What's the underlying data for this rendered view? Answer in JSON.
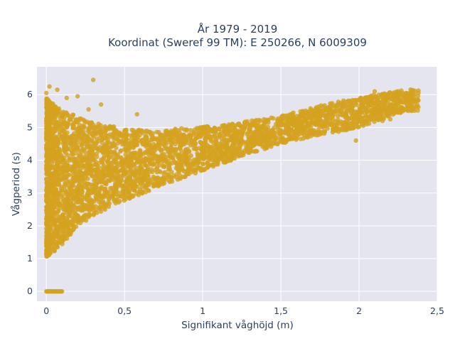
{
  "chart_data": {
    "type": "scatter",
    "title_line1": "År 1979 - 2019",
    "title_line2": "Koordinat (Sweref 99 TM): E 250266, N 6009309",
    "xlabel": "Signifikant våghöjd (m)",
    "ylabel": "Vågperiod (s)",
    "xlim": [
      -0.06,
      2.5
    ],
    "ylim": [
      -0.3,
      6.85
    ],
    "x_ticks": [
      0,
      0.5,
      1,
      1.5,
      2,
      2.5
    ],
    "x_tick_labels": [
      "0",
      "0,5",
      "1",
      "1,5",
      "2",
      "2,5"
    ],
    "y_ticks": [
      0,
      1,
      2,
      3,
      4,
      5,
      6
    ],
    "y_tick_labels": [
      "0",
      "1",
      "2",
      "3",
      "4",
      "5",
      "6"
    ],
    "grid": true,
    "legend": "none",
    "colors": {
      "marker": "#d4a21f",
      "plot_bg": "#e5e5ef",
      "grid": "#ffffff",
      "text": "#2a3f5f"
    },
    "cloud_outline": {
      "upper": [
        [
          0.0,
          5.9
        ],
        [
          0.1,
          5.5
        ],
        [
          0.3,
          5.2
        ],
        [
          0.5,
          4.95
        ],
        [
          0.7,
          4.9
        ],
        [
          0.9,
          5.0
        ],
        [
          1.1,
          5.05
        ],
        [
          1.3,
          5.2
        ],
        [
          1.5,
          5.35
        ],
        [
          1.7,
          5.6
        ],
        [
          1.9,
          5.85
        ],
        [
          2.1,
          6.0
        ],
        [
          2.38,
          6.2
        ]
      ],
      "lower": [
        [
          0.0,
          1.05
        ],
        [
          0.1,
          1.4
        ],
        [
          0.2,
          2.0
        ],
        [
          0.3,
          2.3
        ],
        [
          0.5,
          2.75
        ],
        [
          0.7,
          3.15
        ],
        [
          0.9,
          3.5
        ],
        [
          1.1,
          3.85
        ],
        [
          1.3,
          4.2
        ],
        [
          1.5,
          4.5
        ],
        [
          1.7,
          4.7
        ],
        [
          1.9,
          4.9
        ],
        [
          2.0,
          5.0
        ],
        [
          2.3,
          5.5
        ]
      ]
    },
    "zero_period_band": {
      "x_range": [
        0.0,
        0.1
      ],
      "y": 0
    },
    "outliers": [
      {
        "x": 0.3,
        "y": 6.45
      },
      {
        "x": 0.02,
        "y": 6.25
      },
      {
        "x": 0.07,
        "y": 6.15
      },
      {
        "x": 0.2,
        "y": 5.95
      },
      {
        "x": 0.35,
        "y": 5.7
      },
      {
        "x": 0.58,
        "y": 5.4
      },
      {
        "x": 0.0,
        "y": 6.05
      },
      {
        "x": 0.13,
        "y": 5.9
      },
      {
        "x": 0.27,
        "y": 5.55
      },
      {
        "x": 2.2,
        "y": 5.25
      },
      {
        "x": 2.15,
        "y": 5.2
      },
      {
        "x": 2.05,
        "y": 5.1
      },
      {
        "x": 1.98,
        "y": 4.6
      },
      {
        "x": 1.93,
        "y": 5.15
      },
      {
        "x": 2.02,
        "y": 5.3
      },
      {
        "x": 2.38,
        "y": 6.05
      },
      {
        "x": 2.25,
        "y": 6.1
      },
      {
        "x": 2.1,
        "y": 6.1
      }
    ]
  }
}
